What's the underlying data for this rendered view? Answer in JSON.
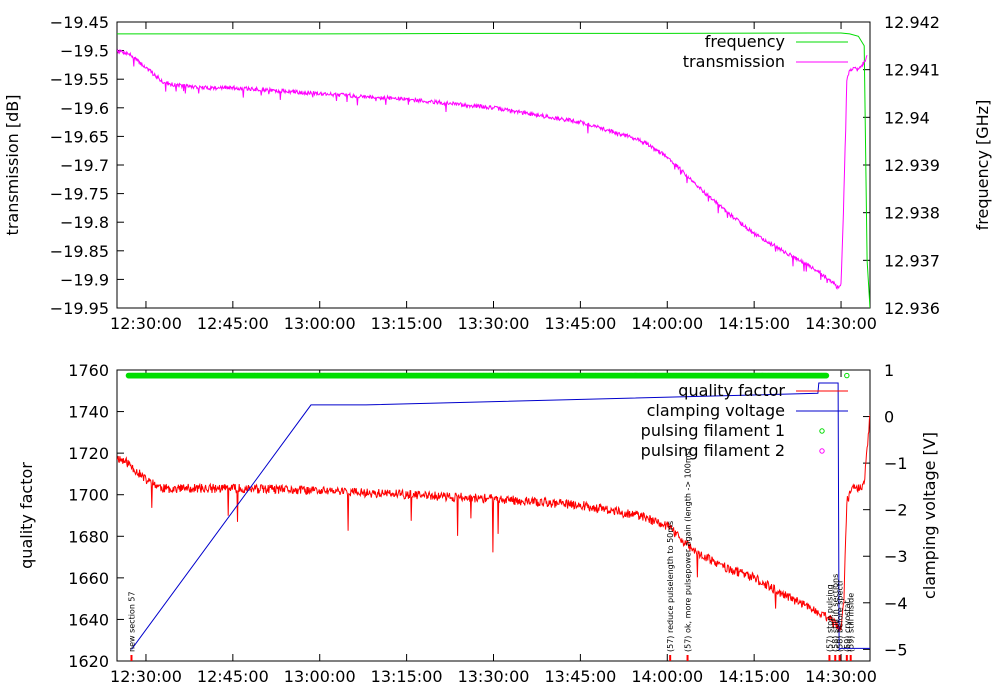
{
  "chart_data": [
    {
      "type": "line",
      "xlabel": "",
      "ylabel": "transmission [dB]",
      "y2label": "frequency [GHz]",
      "xlim": [
        "12:25:00",
        "14:35:00"
      ],
      "ylim": [
        -19.95,
        -19.45
      ],
      "y2lim": [
        12.936,
        12.942
      ],
      "x_ticks": [
        "12:30:00",
        "12:45:00",
        "13:00:00",
        "13:15:00",
        "13:30:00",
        "13:45:00",
        "14:00:00",
        "14:15:00",
        "14:30:00"
      ],
      "y_ticks": [
        "-19.45",
        "-19.5",
        "-19.55",
        "-19.6",
        "-19.65",
        "-19.7",
        "-19.75",
        "-19.8",
        "-19.85",
        "-19.9",
        "-19.95"
      ],
      "y2_ticks": [
        "12.942",
        "12.941",
        "12.94",
        "12.939",
        "12.938",
        "12.937",
        "12.936"
      ],
      "grid": false,
      "legend": "top-right",
      "series": [
        {
          "name": "frequency",
          "axis": "y2",
          "color": "#00dd00",
          "x": [
            "12:25:00",
            "13:00:00",
            "13:30:00",
            "14:00:00",
            "14:25:00",
            "14:30:00",
            "14:31:30",
            "14:33:00",
            "14:34:00",
            "14:34:30",
            "14:35:00"
          ],
          "y": [
            12.94175,
            12.94175,
            12.94176,
            12.94176,
            12.94177,
            12.94177,
            12.94175,
            12.9417,
            12.9415,
            12.937,
            12.936
          ]
        },
        {
          "name": "transmission",
          "axis": "y",
          "color": "#ff00ff",
          "x": [
            "12:25:00",
            "12:27:00",
            "12:30:00",
            "12:33:00",
            "12:35:00",
            "12:40:00",
            "12:45:00",
            "13:00:00",
            "13:15:00",
            "13:30:00",
            "13:45:00",
            "13:55:00",
            "14:00:00",
            "14:05:00",
            "14:10:00",
            "14:15:00",
            "14:20:00",
            "14:25:00",
            "14:28:00",
            "14:29:30",
            "14:30:00",
            "14:30:30",
            "14:31:00",
            "14:31:30",
            "14:32:00",
            "14:33:00",
            "14:34:00",
            "14:34:30"
          ],
          "y": [
            -19.5,
            -19.505,
            -19.53,
            -19.555,
            -19.56,
            -19.565,
            -19.565,
            -19.575,
            -19.585,
            -19.6,
            -19.625,
            -19.655,
            -19.685,
            -19.735,
            -19.78,
            -19.82,
            -19.85,
            -19.88,
            -19.9,
            -19.915,
            -19.91,
            -19.75,
            -19.55,
            -19.535,
            -19.53,
            -19.535,
            -19.52,
            -19.51
          ]
        }
      ]
    },
    {
      "type": "line",
      "xlabel": "",
      "ylabel": "quality factor",
      "y2label": "clamping voltage [V]",
      "xlim": [
        "12:25:00",
        "14:35:00"
      ],
      "ylim": [
        1620,
        1760
      ],
      "y2lim": [
        -5.25,
        1
      ],
      "x_ticks": [
        "12:30:00",
        "12:45:00",
        "13:00:00",
        "13:15:00",
        "13:30:00",
        "13:45:00",
        "14:00:00",
        "14:15:00",
        "14:30:00"
      ],
      "y_ticks": [
        "1760",
        "1740",
        "1720",
        "1700",
        "1680",
        "1660",
        "1640",
        "1620"
      ],
      "y2_ticks": [
        "1",
        "0",
        "-1",
        "-2",
        "-3",
        "-4",
        "-5"
      ],
      "grid": false,
      "legend": "top-right",
      "series": [
        {
          "name": "quality factor",
          "axis": "y",
          "color": "#ff0000",
          "x": [
            "12:25:00",
            "12:27:00",
            "12:30:00",
            "12:33:00",
            "12:35:00",
            "12:45:00",
            "13:00:00",
            "13:15:00",
            "13:30:00",
            "13:45:00",
            "13:55:00",
            "14:00:00",
            "14:05:00",
            "14:10:00",
            "14:15:00",
            "14:20:00",
            "14:25:00",
            "14:28:00",
            "14:29:00",
            "14:29:30",
            "14:30:00",
            "14:30:30",
            "14:31:00",
            "14:32:00",
            "14:33:00",
            "14:34:00",
            "14:35:00"
          ],
          "y": [
            1718,
            1715,
            1707,
            1703,
            1703,
            1703,
            1702,
            1700,
            1698,
            1695,
            1690,
            1685,
            1672,
            1665,
            1660,
            1652,
            1645,
            1640,
            1638,
            1636,
            1636,
            1650,
            1697,
            1703,
            1703,
            1705,
            1738
          ]
        },
        {
          "name": "clamping voltage",
          "axis": "y2",
          "color": "#0000cc",
          "x": [
            "12:27:30",
            "12:58:30",
            "13:08:00",
            "14:26:00",
            "14:26:10",
            "14:29:30",
            "14:29:40",
            "14:30:00",
            "14:35:00"
          ],
          "y": [
            -5.0,
            0.25,
            0.25,
            0.5,
            0.72,
            0.72,
            -5.0,
            -4.98,
            -4.98
          ]
        },
        {
          "name": "pulsing filament 1",
          "axis": "y2",
          "color": "#00dd00",
          "marker": "circle",
          "x_range": [
            "12:27:00",
            "14:27:30"
          ],
          "y": 0.88,
          "extra_points": [
            {
              "x": "14:31:00",
              "y": 0.88
            }
          ]
        },
        {
          "name": "pulsing filament 2",
          "axis": "y2",
          "color": "#ff00ff",
          "marker": "circle",
          "x_range": [],
          "y": null
        }
      ],
      "annotations": [
        {
          "x": "12:27:30",
          "text": "new section 57"
        },
        {
          "x": "14:00:30",
          "text": "(57) reduce pulselength to 50ms"
        },
        {
          "x": "14:03:30",
          "text": "(57) ok, more pulsepower again (length -> 100ms)"
        },
        {
          "x": "14:28:00",
          "text": "(57) stop pulsing"
        },
        {
          "x": "14:29:00",
          "text": "(58) still in sections"
        },
        {
          "x": "14:29:45",
          "text": "(58) before spectr"
        },
        {
          "x": "14:31:00",
          "text": "(59) cryostat"
        },
        {
          "x": "14:31:40",
          "text": "(59) still inside"
        }
      ]
    }
  ]
}
